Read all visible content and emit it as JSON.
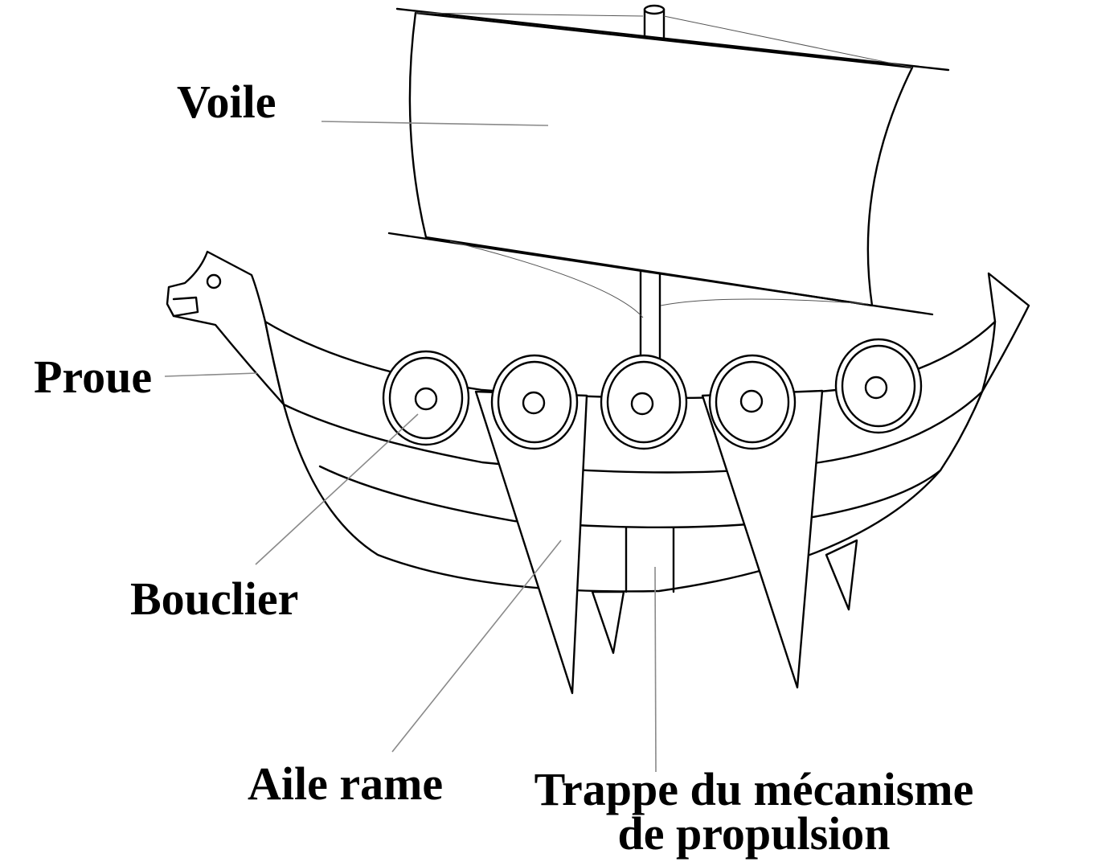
{
  "labels": {
    "voile": "Voile",
    "proue": "Proue",
    "bouclier": "Bouclier",
    "aile_rame": "Aile rame",
    "trappe_line1": "Trappe du mécanisme",
    "trappe_line2": "de propulsion"
  },
  "colors": {
    "ink": "#000000",
    "leader": "#8a8a8a",
    "background": "#ffffff"
  }
}
